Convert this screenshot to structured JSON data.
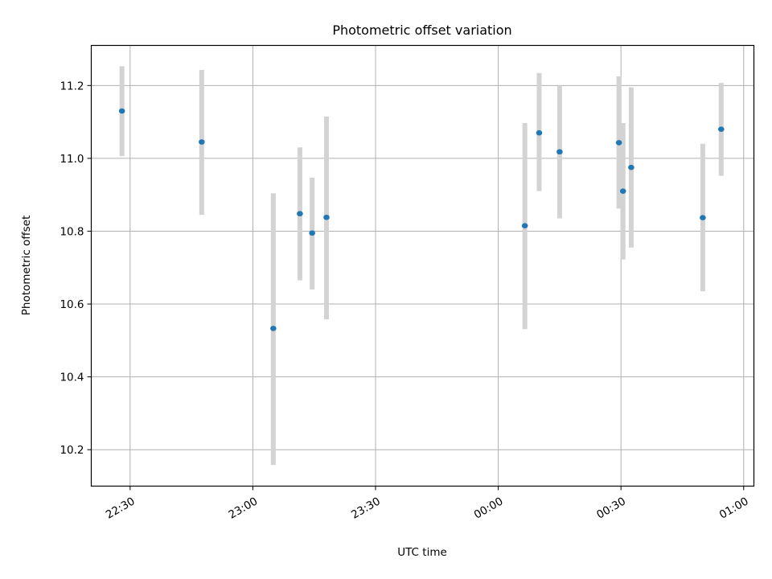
{
  "chart_data": {
    "type": "scatter",
    "title": "Photometric offset variation",
    "xlabel": "UTC time",
    "ylabel": "Photometric offset",
    "x_unit": "time",
    "x_ticks": [
      "22:30",
      "23:00",
      "23:30",
      "00:00",
      "00:30",
      "01:00"
    ],
    "xlim": [
      "22:20:30",
      "01:02:30"
    ],
    "ylim": [
      10.1,
      11.31
    ],
    "y_ticks": [
      10.2,
      10.4,
      10.6,
      10.8,
      11.0,
      11.2
    ],
    "grid": true,
    "marker_color": "#1f77b4",
    "errorbar_color": "#d3d3d3",
    "points": [
      {
        "x": "22:28:00",
        "y": 11.13,
        "yerr_low": 11.006,
        "yerr_high": 11.253
      },
      {
        "x": "22:47:30",
        "y": 11.045,
        "yerr_low": 10.845,
        "yerr_high": 11.243
      },
      {
        "x": "23:05:00",
        "y": 10.533,
        "yerr_low": 10.158,
        "yerr_high": 10.904
      },
      {
        "x": "23:11:30",
        "y": 10.848,
        "yerr_low": 10.665,
        "yerr_high": 11.03
      },
      {
        "x": "23:14:30",
        "y": 10.795,
        "yerr_low": 10.64,
        "yerr_high": 10.947
      },
      {
        "x": "23:18:00",
        "y": 10.838,
        "yerr_low": 10.558,
        "yerr_high": 11.115
      },
      {
        "x": "00:06:30",
        "y": 10.815,
        "yerr_low": 10.531,
        "yerr_high": 11.097
      },
      {
        "x": "00:10:00",
        "y": 11.07,
        "yerr_low": 10.91,
        "yerr_high": 11.234
      },
      {
        "x": "00:15:00",
        "y": 11.018,
        "yerr_low": 10.835,
        "yerr_high": 11.2
      },
      {
        "x": "00:29:30",
        "y": 11.043,
        "yerr_low": 10.862,
        "yerr_high": 11.225
      },
      {
        "x": "00:30:30",
        "y": 10.91,
        "yerr_low": 10.722,
        "yerr_high": 11.097
      },
      {
        "x": "00:32:30",
        "y": 10.975,
        "yerr_low": 10.755,
        "yerr_high": 11.195
      },
      {
        "x": "00:50:00",
        "y": 10.837,
        "yerr_low": 10.635,
        "yerr_high": 11.04
      },
      {
        "x": "00:54:30",
        "y": 11.08,
        "yerr_low": 10.952,
        "yerr_high": 11.207
      }
    ]
  }
}
